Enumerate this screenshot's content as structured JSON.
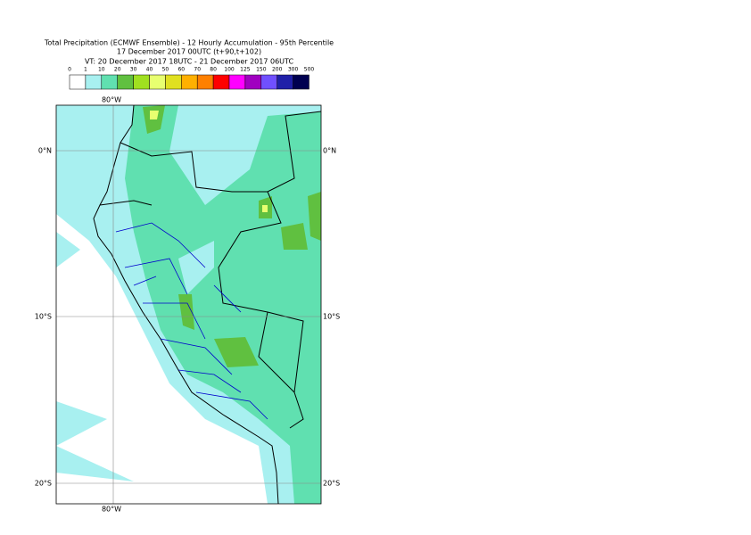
{
  "header": {
    "title": "Total Precipitation (ECMWF Ensemble) - 12 Hourly Accumulation - 95th Percentile",
    "run": "17 December 2017 00UTC (t+90,t+102)",
    "valid": "VT: 20 December 2017 18UTC - 21 December 2017 06UTC"
  },
  "legend": {
    "labels": [
      "0",
      "1",
      "10",
      "20",
      "30",
      "40",
      "50",
      "60",
      "70",
      "80",
      "100",
      "125",
      "150",
      "200",
      "300",
      "500"
    ],
    "colors": [
      "#ffffff",
      "#a8f0f0",
      "#60e0b0",
      "#60c040",
      "#a0e020",
      "#e8ff70",
      "#e0e020",
      "#ffb000",
      "#ff8000",
      "#ff0000",
      "#ff00ff",
      "#a000c0",
      "#7050ff",
      "#2020a8",
      "#000050"
    ]
  },
  "map": {
    "lon_label": "80°W",
    "lat_labels": [
      "0°N",
      "10°S",
      "20°S"
    ]
  }
}
